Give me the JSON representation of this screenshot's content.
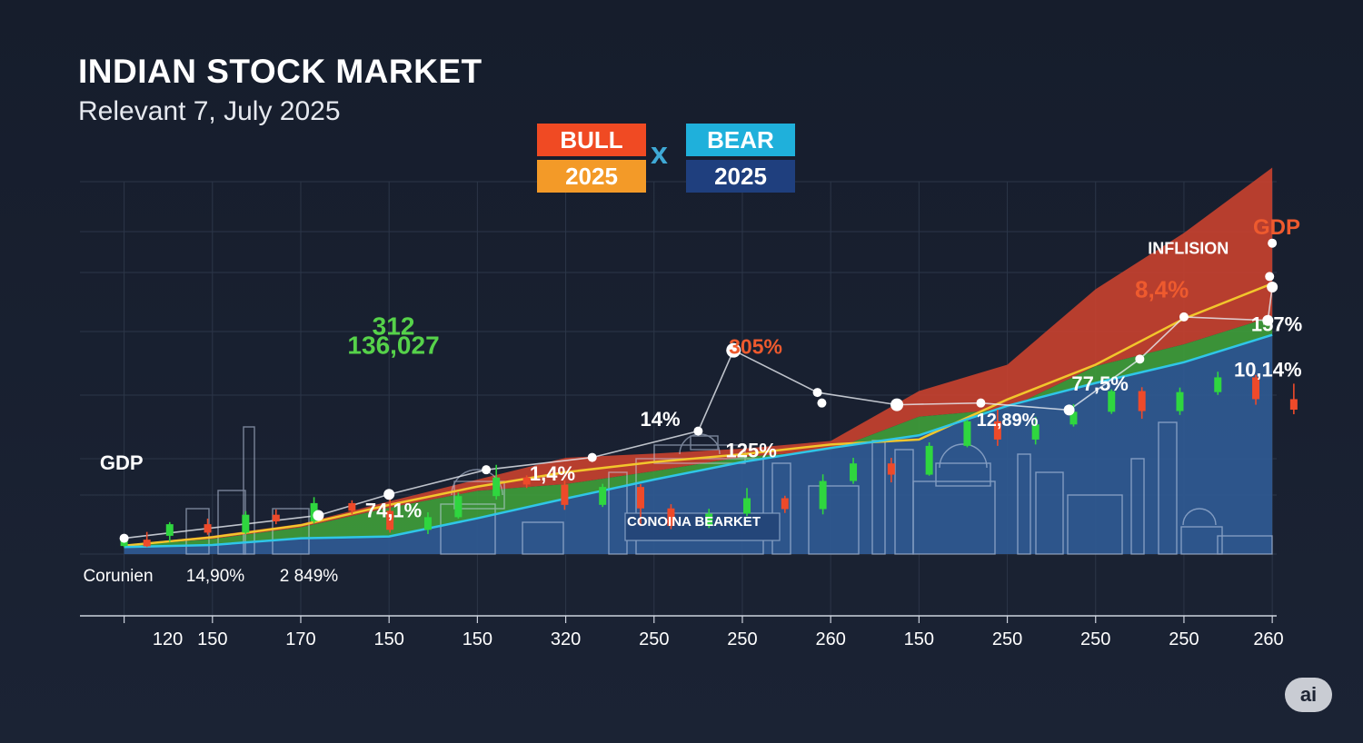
{
  "header": {
    "title": "INDIAN STOCK MARKET",
    "subtitle": "Relevant 7, July 2025"
  },
  "legend": {
    "bull_label": "BULL",
    "bull_year": "2025",
    "separator": "x",
    "bear_label": "BEAR",
    "bear_year": "2025"
  },
  "watermark": {
    "label": "ai"
  },
  "colors": {
    "background": "#161d2c",
    "bull_orange": "#f04a23",
    "bull_year": "#f39a28",
    "bear_cyan": "#1fb0db",
    "bear_navy": "#1f3f7e",
    "candle_up": "#2fd63f",
    "candle_down": "#ee4a2a",
    "band_red": "#c9412f",
    "band_green": "#3f9f3a",
    "band_blue": "#2f5a93",
    "label_green": "#56d24a",
    "label_orange": "#ee5a2e"
  },
  "chart_data": {
    "type": "area",
    "title": "INDIAN STOCK MARKET",
    "subtitle": "Relevant 7, July 2025",
    "x_tick_labels": [
      "120",
      "150",
      "170",
      "150",
      "150",
      "320",
      "250",
      "250",
      "260",
      "150",
      "250",
      "250",
      "250",
      "260"
    ],
    "bottom_labels": [
      "Corunien",
      "14,90%",
      "2 849%"
    ],
    "series": [
      {
        "name": "red",
        "color": "#c9412f",
        "values": [
          0.6,
          3.2,
          6.6,
          13.0,
          19.2,
          25.4,
          26.6,
          28.0,
          30.2,
          44.4,
          51.9,
          73.4,
          89.4,
          108.0
        ]
      },
      {
        "name": "green",
        "color": "#3f9f3a",
        "values": [
          0.3,
          2.3,
          5.6,
          11.2,
          16.0,
          17.9,
          21.6,
          25.6,
          27.5,
          37.1,
          39.3,
          51.5,
          57.7,
          65.6
        ]
      },
      {
        "name": "blue",
        "color": "#2f5a93",
        "values": [
          0.0,
          0.6,
          2.5,
          3.0,
          8.2,
          13.8,
          19.2,
          24.2,
          28.2,
          31.8,
          40.2,
          46.7,
          52.6,
          60.4
        ]
      }
    ],
    "lines": [
      {
        "name": "yellow",
        "color": "#f2c62c",
        "values": [
          0.4,
          2.8,
          6.2,
          12.0,
          17.2,
          21.3,
          24.2,
          26.4,
          29.2,
          30.6,
          42.0,
          51.9,
          65.0,
          75.0
        ]
      },
      {
        "name": "cyan",
        "color": "#2fc6e8",
        "values": [
          0.0,
          0.6,
          2.5,
          3.0,
          8.2,
          13.8,
          19.2,
          24.2,
          28.2,
          31.8,
          40.2,
          46.7,
          52.6,
          60.4
        ]
      }
    ],
    "candles": [
      [
        0.0,
        0.3,
        2.1,
        0,
        2.2
      ],
      [
        0.3,
        2.1,
        0.2,
        0,
        4.3
      ],
      [
        0.6,
        3.2,
        6.5,
        1.5,
        7.1
      ],
      [
        1.1,
        6.5,
        4.1,
        3.5,
        8.1
      ],
      [
        1.6,
        4.1,
        9.2,
        3.7,
        10.2
      ],
      [
        2.0,
        9.2,
        7.3,
        6.5,
        10.7
      ],
      [
        2.5,
        7.3,
        12.5,
        6.7,
        14.2
      ],
      [
        3.0,
        12.5,
        10.3,
        9.4,
        13.3
      ],
      [
        3.5,
        10.3,
        4.9,
        4.1,
        13.9
      ],
      [
        4.0,
        4.9,
        8.5,
        3.7,
        9.9
      ],
      [
        4.4,
        8.5,
        14.5,
        8.1,
        15.5
      ],
      [
        4.9,
        14.5,
        19.8,
        13.5,
        23.4
      ],
      [
        5.3,
        19.8,
        17.8,
        16.8,
        20.4
      ],
      [
        5.8,
        17.8,
        12.0,
        10.6,
        19.0
      ],
      [
        6.3,
        12.0,
        17.1,
        11.4,
        18.0
      ],
      [
        6.8,
        17.1,
        11.0,
        6.0,
        17.9
      ],
      [
        7.2,
        11.0,
        6.0,
        5.1,
        12.2
      ],
      [
        7.7,
        6.0,
        9.5,
        5.4,
        10.9
      ],
      [
        8.2,
        9.5,
        13.9,
        8.8,
        16.8
      ],
      [
        8.7,
        13.9,
        10.8,
        9.7,
        14.6
      ],
      [
        9.2,
        10.8,
        18.8,
        9.3,
        20.7
      ],
      [
        9.6,
        18.8,
        23.8,
        18.0,
        25.4
      ],
      [
        10.1,
        23.8,
        20.6,
        18.4,
        25.4
      ],
      [
        10.6,
        20.6,
        28.8,
        20.3,
        29.8
      ],
      [
        11.1,
        28.8,
        35.8,
        28.4,
        36.2
      ],
      [
        11.5,
        35.8,
        30.6,
        28.8,
        39.1
      ],
      [
        12.0,
        30.6,
        34.9,
        29.2,
        37.0
      ],
      [
        12.5,
        34.9,
        38.5,
        34.3,
        40.7
      ],
      [
        13.0,
        38.5,
        44.4,
        37.9,
        44.9
      ],
      [
        13.4,
        44.4,
        38.7,
        36.5,
        45.5
      ],
      [
        13.9,
        38.7,
        44.1,
        37.6,
        45.4
      ],
      [
        14.4,
        44.1,
        48.3,
        43.3,
        49.9
      ],
      [
        14.9,
        48.3,
        42.1,
        40.5,
        49.0
      ],
      [
        15.4,
        42.1,
        39.1,
        37.8,
        46.5
      ]
    ],
    "annotations": [
      {
        "text": "312",
        "x": 3.05,
        "y": 60.5,
        "color": "#56d24a",
        "size": 28
      },
      {
        "text": "136,027",
        "x": 3.05,
        "y": 55.0,
        "color": "#56d24a",
        "size": 28
      },
      {
        "text": "305%",
        "x": 7.15,
        "y": 55.0,
        "color": "#ee5a2e",
        "size": 23
      },
      {
        "text": "8,4%",
        "x": 11.75,
        "y": 71.0,
        "color": "#ee5a2e",
        "size": 26
      },
      {
        "text": "INFLISION",
        "x": 12.05,
        "y": 83.5,
        "color": "#ffffff",
        "size": 18
      },
      {
        "text": "GDP",
        "x": 13.05,
        "y": 89.0,
        "color": "#ee5a2e",
        "size": 24
      },
      {
        "text": "GDP",
        "x": -0.03,
        "y": 22.0,
        "color": "#ffffff",
        "size": 22
      },
      {
        "text": "157%",
        "x": 13.05,
        "y": 61.5,
        "color": "#ffffff",
        "size": 22
      },
      {
        "text": "10,14%",
        "x": 12.95,
        "y": 48.5,
        "color": "#ffffff",
        "size": 22
      },
      {
        "text": "77,5%",
        "x": 11.05,
        "y": 44.5,
        "color": "#ffffff",
        "size": 22
      },
      {
        "text": "12,89%",
        "x": 10.0,
        "y": 34.5,
        "color": "#ffffff",
        "size": 20
      },
      {
        "text": "14%",
        "x": 6.07,
        "y": 34.5,
        "color": "#ffffff",
        "size": 22
      },
      {
        "text": "125%",
        "x": 7.1,
        "y": 25.5,
        "color": "#ffffff",
        "size": 22
      },
      {
        "text": "1,4%",
        "x": 4.85,
        "y": 19.0,
        "color": "#ffffff",
        "size": 22
      },
      {
        "text": "74,1%",
        "x": 3.05,
        "y": 8.5,
        "color": "#ffffff",
        "size": 22
      },
      {
        "text": "CONOINA BEARKET",
        "x": 6.45,
        "y": 6.0,
        "color": "#ffffff",
        "size": 15
      }
    ],
    "markers": [
      {
        "x": 0.0,
        "y": 2.5,
        "r": 5
      },
      {
        "x": 2.2,
        "y": 9.0,
        "r": 6
      },
      {
        "x": 3.0,
        "y": 15.0,
        "r": 6
      },
      {
        "x": 4.1,
        "y": 22.0,
        "r": 5
      },
      {
        "x": 5.3,
        "y": 25.5,
        "r": 5
      },
      {
        "x": 6.5,
        "y": 33.0,
        "r": 5
      },
      {
        "x": 6.9,
        "y": 56.0,
        "r": 8
      },
      {
        "x": 7.85,
        "y": 44.0,
        "r": 5
      },
      {
        "x": 7.9,
        "y": 41.0,
        "r": 5
      },
      {
        "x": 8.75,
        "y": 40.5,
        "r": 7
      },
      {
        "x": 9.7,
        "y": 41.0,
        "r": 5
      },
      {
        "x": 10.7,
        "y": 39.0,
        "r": 6
      },
      {
        "x": 11.5,
        "y": 53.5,
        "r": 5
      },
      {
        "x": 12.0,
        "y": 65.5,
        "r": 5
      },
      {
        "x": 13.0,
        "y": 74.0,
        "r": 6
      },
      {
        "x": 12.95,
        "y": 64.5,
        "r": 6
      },
      {
        "x": 12.97,
        "y": 77.0,
        "r": 5
      },
      {
        "x": 13.0,
        "y": 86.5,
        "r": 5
      }
    ],
    "white_line": [
      [
        0.0,
        2.5
      ],
      [
        2.2,
        9.0
      ],
      [
        3.0,
        15.0
      ],
      [
        4.1,
        22.0
      ],
      [
        5.3,
        25.5
      ],
      [
        6.5,
        33.0
      ],
      [
        6.9,
        56.0
      ],
      [
        7.85,
        44.0
      ],
      [
        8.75,
        40.5
      ],
      [
        9.7,
        41.0
      ],
      [
        10.7,
        39.0
      ],
      [
        11.5,
        53.5
      ],
      [
        12.0,
        65.5
      ],
      [
        12.95,
        64.5
      ],
      [
        13.0,
        74.0
      ]
    ],
    "xlim": [
      -0.5,
      13.05
    ],
    "ylim": [
      -2,
      104
    ],
    "grid": true
  }
}
